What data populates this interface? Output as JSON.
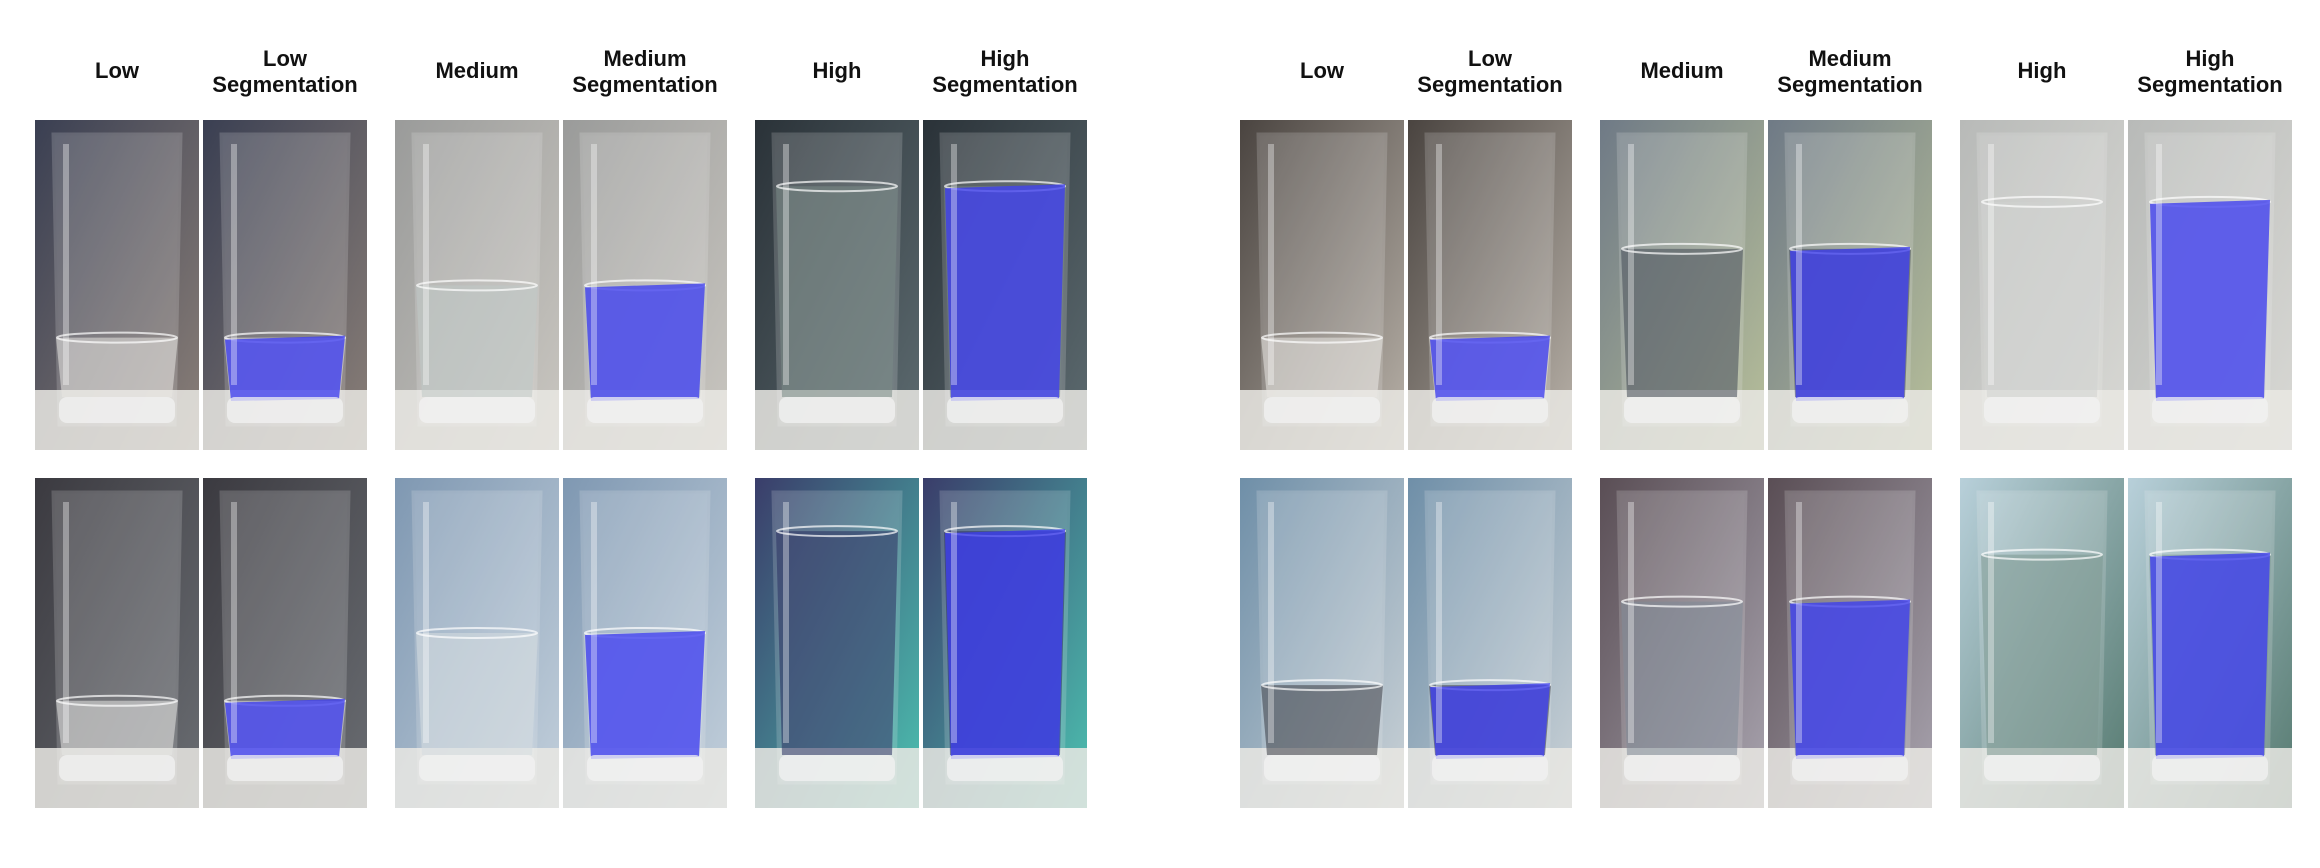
{
  "figures": [
    {
      "headers": [
        "Low",
        "Low\nSegmentation",
        "Medium",
        "Medium\nSegmentation",
        "High",
        "High\nSegmentation"
      ],
      "rows": [
        [
          {
            "bg": "#3a3f52",
            "bg2": "#8a7f78",
            "water": "#e8e6e2",
            "level": 0.22,
            "seg": false
          },
          {
            "bg": "#3a3f52",
            "bg2": "#8a7f78",
            "water": "#e8e6e2",
            "level": 0.22,
            "seg": true,
            "segColor": "#3d3df0"
          },
          {
            "bg": "#9a9b9a",
            "bg2": "#c9c6c0",
            "water": "#bfc8c6",
            "level": 0.42,
            "seg": false
          },
          {
            "bg": "#9a9b9a",
            "bg2": "#c9c6c0",
            "water": "#bfc8c6",
            "level": 0.42,
            "seg": true,
            "segColor": "#3d3df0"
          },
          {
            "bg": "#2a3238",
            "bg2": "#5d6b70",
            "water": "#7a8b86",
            "level": 0.8,
            "seg": false
          },
          {
            "bg": "#2a3238",
            "bg2": "#5d6b70",
            "water": "#7a8b86",
            "level": 0.8,
            "seg": true,
            "segColor": "#3d3df0"
          }
        ],
        [
          {
            "bg": "#3b3a40",
            "bg2": "#6a6d72",
            "water": "#e6e6e4",
            "level": 0.2,
            "seg": false
          },
          {
            "bg": "#3b3a40",
            "bg2": "#6a6d72",
            "water": "#e6e6e4",
            "level": 0.2,
            "seg": true,
            "segColor": "#3d3df0"
          },
          {
            "bg": "#7f98b2",
            "bg2": "#c2cfdb",
            "water": "#d6dce0",
            "level": 0.46,
            "seg": false
          },
          {
            "bg": "#7f98b2",
            "bg2": "#c2cfdb",
            "water": "#d6dce0",
            "level": 0.46,
            "seg": true,
            "segColor": "#3d3df0"
          },
          {
            "bg": "#3a3d6a",
            "bg2": "#4cc0b0",
            "water": "#2a3060",
            "level": 0.85,
            "seg": false
          },
          {
            "bg": "#3a3d6a",
            "bg2": "#4cc0b0",
            "water": "#2a3060",
            "level": 0.85,
            "seg": true,
            "segColor": "#3d3df0"
          }
        ]
      ]
    },
    {
      "headers": [
        "Low",
        "Low\nSegmentation",
        "Medium",
        "Medium\nSegmentation",
        "High",
        "High\nSegmentation"
      ],
      "rows": [
        [
          {
            "bg": "#4a4440",
            "bg2": "#b8b1a8",
            "water": "#e9e7e4",
            "level": 0.22,
            "seg": false
          },
          {
            "bg": "#4a4440",
            "bg2": "#b8b1a8",
            "water": "#e9e7e4",
            "level": 0.22,
            "seg": true,
            "segColor": "#3d3df0"
          },
          {
            "bg": "#6f7a86",
            "bg2": "#b7bf9a",
            "water": "#444a55",
            "level": 0.56,
            "seg": false
          },
          {
            "bg": "#6f7a86",
            "bg2": "#b7bf9a",
            "water": "#444a55",
            "level": 0.56,
            "seg": true,
            "segColor": "#3d3df0"
          },
          {
            "bg": "#b8bab8",
            "bg2": "#d8d8d4",
            "water": "#d0d2d0",
            "level": 0.74,
            "seg": false
          },
          {
            "bg": "#b8bab8",
            "bg2": "#d8d8d4",
            "water": "#d0d2d0",
            "level": 0.74,
            "seg": true,
            "segColor": "#3d3df0"
          }
        ],
        [
          {
            "bg": "#6f8fa8",
            "bg2": "#c9d1d6",
            "water": "#3a3c44",
            "level": 0.26,
            "seg": false
          },
          {
            "bg": "#6f8fa8",
            "bg2": "#c9d1d6",
            "water": "#3a3c44",
            "level": 0.26,
            "seg": true,
            "segColor": "#3d3df0"
          },
          {
            "bg": "#5a4e55",
            "bg2": "#a8a3ae",
            "water": "#808a98",
            "level": 0.58,
            "seg": false
          },
          {
            "bg": "#5a4e55",
            "bg2": "#a8a3ae",
            "water": "#808a98",
            "level": 0.58,
            "seg": true,
            "segColor": "#3d3df0"
          },
          {
            "bg": "#b8d0da",
            "bg2": "#567a70",
            "water": "#7c9890",
            "level": 0.76,
            "seg": false
          },
          {
            "bg": "#b8d0da",
            "bg2": "#567a70",
            "water": "#7c9890",
            "level": 0.76,
            "seg": true,
            "segColor": "#3d3df0"
          }
        ]
      ]
    }
  ]
}
